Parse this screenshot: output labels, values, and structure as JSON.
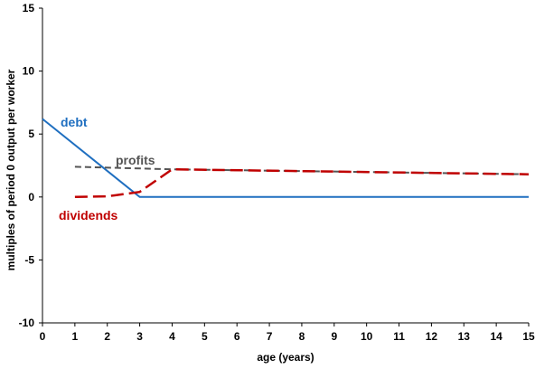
{
  "chart_data": {
    "type": "line",
    "xlabel": "age (years)",
    "ylabel": "multiples of period 0 output per worker",
    "xlim": [
      0,
      15
    ],
    "ylim": [
      -10,
      15
    ],
    "x_ticks": [
      0,
      1,
      2,
      3,
      4,
      5,
      6,
      7,
      8,
      9,
      10,
      11,
      12,
      13,
      14,
      15
    ],
    "y_ticks": [
      -10,
      -5,
      0,
      5,
      10,
      15
    ],
    "grid": false,
    "series": [
      {
        "name": "debt",
        "color": "#1f6fc0",
        "style": "solid",
        "x": [
          0,
          3,
          15
        ],
        "y": [
          6.2,
          0.0,
          0.0
        ]
      },
      {
        "name": "profits",
        "color": "#555555",
        "style": "dashed",
        "x": [
          1,
          4,
          15
        ],
        "y": [
          2.4,
          2.2,
          1.8
        ]
      },
      {
        "name": "dividends",
        "color": "#c00000",
        "style": "dashed",
        "x": [
          1,
          2,
          3,
          4,
          15
        ],
        "y": [
          0.0,
          0.05,
          0.4,
          2.2,
          1.8
        ]
      }
    ]
  }
}
